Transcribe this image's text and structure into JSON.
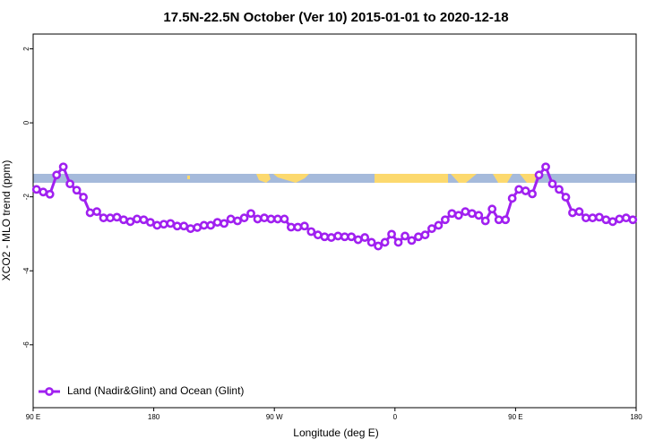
{
  "chart_data": {
    "type": "line",
    "title": "17.5N-22.5N October (Ver 10)   2015-01-01 to 2020-12-18",
    "xlabel": "Longitude (deg E)",
    "ylabel": "XCO2 - MLO trend (ppm)",
    "xlim": [
      90,
      540
    ],
    "ylim": [
      -7.7,
      2.4
    ],
    "xticks": [
      {
        "value": 90,
        "label": "90 E"
      },
      180,
      {
        "value": 270,
        "label": "90 W"
      },
      {
        "value": 360,
        "label": "0"
      },
      {
        "value": 450,
        "label": "90 E"
      },
      {
        "value": 540,
        "label": "180"
      }
    ],
    "yticks": [
      2,
      0,
      -2,
      -4,
      -6
    ],
    "legend": "bottom-left",
    "x": [
      92.5,
      97.5,
      102.5,
      107.5,
      112.5,
      117.5,
      122.5,
      127.5,
      132.5,
      137.5,
      142.5,
      147.5,
      152.5,
      157.5,
      162.5,
      167.5,
      172.5,
      177.5,
      182.5,
      187.5,
      192.5,
      197.5,
      202.5,
      207.5,
      212.5,
      217.5,
      222.5,
      227.5,
      232.5,
      237.5,
      242.5,
      247.5,
      252.5,
      257.5,
      262.5,
      267.5,
      272.5,
      277.5,
      282.5,
      287.5,
      292.5,
      297.5,
      302.5,
      307.5,
      312.5,
      317.5,
      322.5,
      327.5,
      332.5,
      337.5,
      342.5,
      347.5,
      352.5,
      357.5,
      362.5,
      367.5,
      372.5,
      377.5,
      382.5,
      387.5,
      392.5,
      397.5,
      402.5,
      407.5,
      412.5,
      417.5,
      422.5,
      427.5,
      432.5,
      437.5,
      442.5,
      447.5,
      452.5,
      457.5,
      462.5,
      467.5,
      472.5,
      477.5,
      482.5,
      487.5,
      492.5,
      497.5,
      502.5,
      507.5,
      512.5,
      517.5,
      522.5,
      527.5,
      532.5,
      537.5
    ],
    "series": [
      {
        "name": "Land (Nadir&Glint) and Ocean (Glint)",
        "color": "#a020f0",
        "values": [
          -1.8,
          -1.87,
          -1.93,
          -1.41,
          -1.19,
          -1.65,
          -1.82,
          -2.01,
          -2.43,
          -2.4,
          -2.57,
          -2.57,
          -2.55,
          -2.62,
          -2.67,
          -2.6,
          -2.62,
          -2.69,
          -2.77,
          -2.74,
          -2.72,
          -2.79,
          -2.79,
          -2.86,
          -2.83,
          -2.77,
          -2.77,
          -2.69,
          -2.72,
          -2.6,
          -2.65,
          -2.57,
          -2.45,
          -2.6,
          -2.57,
          -2.6,
          -2.6,
          -2.6,
          -2.82,
          -2.82,
          -2.79,
          -2.94,
          -3.03,
          -3.08,
          -3.1,
          -3.06,
          -3.08,
          -3.08,
          -3.16,
          -3.1,
          -3.23,
          -3.33,
          -3.23,
          -3.01,
          -3.23,
          -3.06,
          -3.18,
          -3.08,
          -3.03,
          -2.86,
          -2.77,
          -2.62,
          -2.45,
          -2.5,
          -2.4,
          -2.45,
          -2.5,
          -2.65,
          -2.33,
          -2.62,
          -2.62,
          -2.04,
          -1.8,
          -1.84,
          -1.92,
          -1.41,
          -1.19,
          -1.65,
          -1.8,
          -2.01,
          -2.43,
          -2.4,
          -2.57,
          -2.57,
          -2.55,
          -2.62,
          -2.67,
          -2.6,
          -2.57,
          -2.62
        ]
      }
    ]
  }
}
